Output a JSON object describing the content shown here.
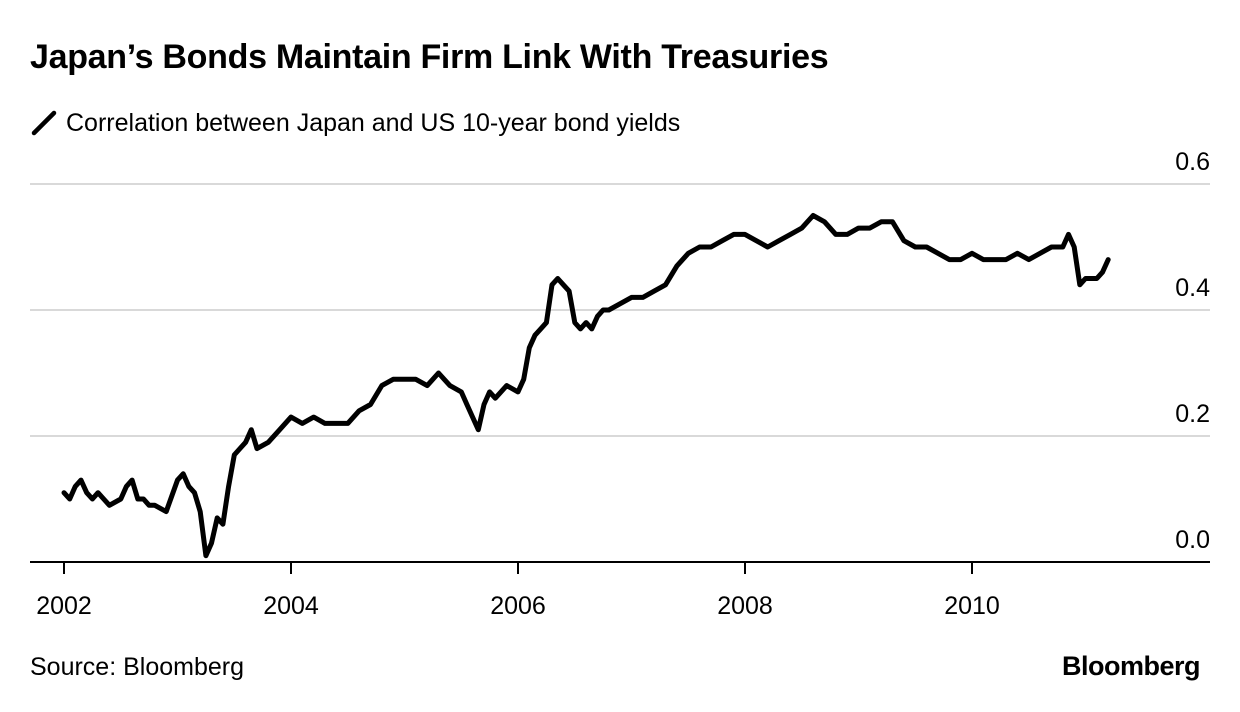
{
  "chart_data": {
    "type": "line",
    "title": "Japan’s Bonds Maintain Firm Link With Treasuries",
    "xlabel": "",
    "ylabel": "",
    "legend_position": "top-left",
    "grid": true,
    "xlim": [
      2001.85,
      2012.3
    ],
    "ylim": [
      0.0,
      0.6
    ],
    "x_ticks": [
      2002,
      2004,
      2006,
      2008,
      2010
    ],
    "x_tick_labels": [
      "2002",
      "2004",
      "2006",
      "2008",
      "2010"
    ],
    "y_ticks": [
      0.0,
      0.2,
      0.4,
      0.6
    ],
    "y_tick_labels": [
      "0.0",
      "0.2",
      "0.4",
      "0.6"
    ],
    "series": [
      {
        "name": "Correlation between Japan and US 10-year bond yields",
        "color": "#000000",
        "x": [
          2002.0,
          2002.05,
          2002.1,
          2002.15,
          2002.2,
          2002.25,
          2002.3,
          2002.35,
          2002.4,
          2002.5,
          2002.55,
          2002.6,
          2002.65,
          2002.7,
          2002.75,
          2002.8,
          2002.9,
          2003.0,
          2003.05,
          2003.1,
          2003.15,
          2003.2,
          2003.25,
          2003.3,
          2003.35,
          2003.4,
          2003.45,
          2003.5,
          2003.55,
          2003.6,
          2003.65,
          2003.7,
          2003.8,
          2003.9,
          2004.0,
          2004.1,
          2004.2,
          2004.3,
          2004.4,
          2004.5,
          2004.6,
          2004.7,
          2004.8,
          2004.9,
          2005.0,
          2005.1,
          2005.2,
          2005.3,
          2005.4,
          2005.5,
          2005.55,
          2005.6,
          2005.65,
          2005.7,
          2005.75,
          2005.8,
          2005.9,
          2006.0,
          2006.05,
          2006.1,
          2006.15,
          2006.2,
          2006.25,
          2006.3,
          2006.35,
          2006.4,
          2006.45,
          2006.5,
          2006.55,
          2006.6,
          2006.65,
          2006.7,
          2006.75,
          2006.8,
          2006.9,
          2007.0,
          2007.1,
          2007.2,
          2007.3,
          2007.4,
          2007.5,
          2007.6,
          2007.7,
          2007.8,
          2007.9,
          2008.0,
          2008.1,
          2008.2,
          2008.3,
          2008.4,
          2008.5,
          2008.6,
          2008.7,
          2008.8,
          2008.9,
          2009.0,
          2009.1,
          2009.2,
          2009.3,
          2009.4,
          2009.5,
          2009.6,
          2009.7,
          2009.8,
          2009.9,
          2010.0,
          2010.1,
          2010.2,
          2010.3,
          2010.4,
          2010.5,
          2010.6,
          2010.7,
          2010.8,
          2010.85,
          2010.9,
          2010.95,
          2011.0,
          2011.05,
          2011.1,
          2011.15,
          2011.2
        ],
        "values": [
          0.11,
          0.1,
          0.12,
          0.13,
          0.11,
          0.1,
          0.11,
          0.1,
          0.09,
          0.1,
          0.12,
          0.13,
          0.1,
          0.1,
          0.09,
          0.09,
          0.08,
          0.13,
          0.14,
          0.12,
          0.11,
          0.08,
          0.01,
          0.03,
          0.07,
          0.06,
          0.12,
          0.17,
          0.18,
          0.19,
          0.21,
          0.18,
          0.19,
          0.21,
          0.23,
          0.22,
          0.23,
          0.22,
          0.22,
          0.22,
          0.24,
          0.25,
          0.28,
          0.29,
          0.29,
          0.29,
          0.28,
          0.3,
          0.28,
          0.27,
          0.25,
          0.23,
          0.21,
          0.25,
          0.27,
          0.26,
          0.28,
          0.27,
          0.29,
          0.34,
          0.36,
          0.37,
          0.38,
          0.44,
          0.45,
          0.44,
          0.43,
          0.38,
          0.37,
          0.38,
          0.37,
          0.39,
          0.4,
          0.4,
          0.41,
          0.42,
          0.42,
          0.43,
          0.44,
          0.47,
          0.49,
          0.5,
          0.5,
          0.51,
          0.52,
          0.52,
          0.51,
          0.5,
          0.51,
          0.52,
          0.53,
          0.55,
          0.54,
          0.52,
          0.52,
          0.53,
          0.53,
          0.54,
          0.54,
          0.51,
          0.5,
          0.5,
          0.49,
          0.48,
          0.48,
          0.49,
          0.48,
          0.48,
          0.48,
          0.49,
          0.48,
          0.49,
          0.5,
          0.5,
          0.52,
          0.5,
          0.44,
          0.45,
          0.45,
          0.45,
          0.46,
          0.48
        ]
      }
    ],
    "source": "Source: Bloomberg",
    "brand": "Bloomberg"
  }
}
